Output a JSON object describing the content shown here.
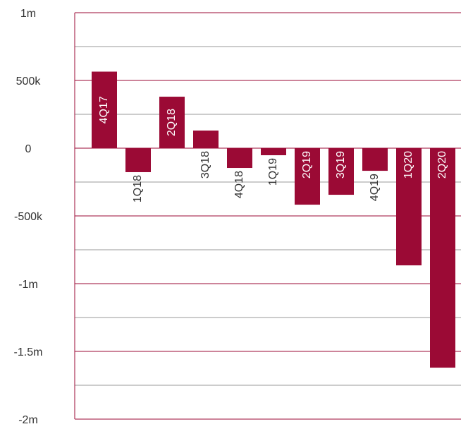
{
  "chart_data": {
    "type": "bar",
    "categories": [
      "4Q17",
      "1Q18",
      "2Q18",
      "3Q18",
      "4Q18",
      "1Q19",
      "2Q19",
      "3Q19",
      "4Q19",
      "1Q20",
      "2Q20"
    ],
    "values": [
      565000,
      -177000,
      380000,
      130000,
      -146000,
      -52000,
      -417000,
      -344000,
      -167000,
      -865000,
      -1620000
    ],
    "color": "#9b0a35",
    "ylim": [
      -2000000,
      1000000
    ],
    "yticks": [
      {
        "value": 1000000,
        "label": "1m"
      },
      {
        "value": 500000,
        "label": "500k"
      },
      0,
      {
        "value": -500000,
        "label": "-500k"
      },
      {
        "value": -1000000,
        "label": "-1m"
      },
      {
        "value": -1500000,
        "label": "-1.5m"
      },
      {
        "value": -2000000,
        "label": "-2m"
      }
    ],
    "grid": true
  }
}
